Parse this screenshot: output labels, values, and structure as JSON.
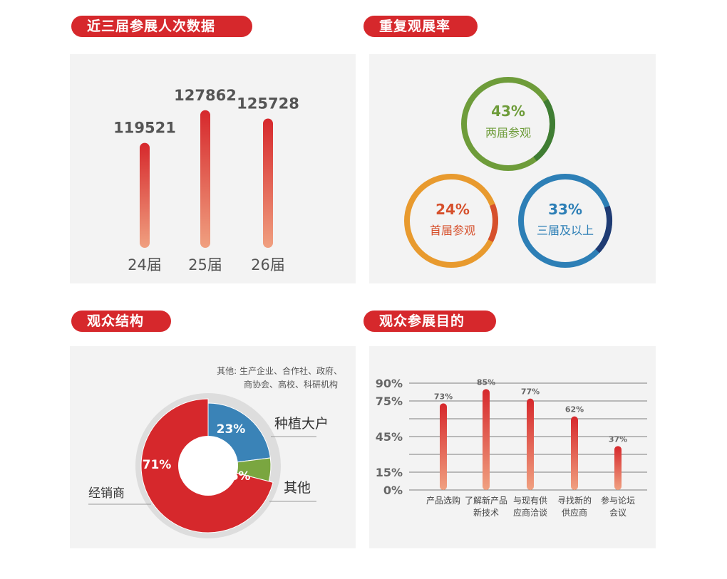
{
  "sections": {
    "s1": "近三届参展人次数据",
    "s2": "重复观展率",
    "s3": "观众结构",
    "s4": "观众参展目的"
  },
  "colors": {
    "accent_red": "#d6282c",
    "panel_bg": "#f3f3f3",
    "green": "#6e9c3a",
    "orange": "#e89a2e",
    "blue": "#2d7fb6",
    "navy": "#1f3b73"
  },
  "chart_data": [
    {
      "id": "attendance",
      "type": "bar",
      "categories": [
        "24届",
        "25届",
        "26届"
      ],
      "values": [
        119521,
        127862,
        125728
      ],
      "ylim": [
        0,
        130000
      ]
    },
    {
      "id": "repeat",
      "type": "pie",
      "circles": [
        {
          "percent": "43%",
          "value": 43,
          "label": "两届参观",
          "color": "#6e9c3a"
        },
        {
          "percent": "24%",
          "value": 24,
          "label": "首届参观",
          "color": "#e89a2e"
        },
        {
          "percent": "33%",
          "value": 33,
          "label": "三届及以上",
          "color": "#2d7fb6"
        }
      ]
    },
    {
      "id": "structure",
      "type": "pie",
      "note_line1": "其他: 生产企业、合作社、政府、",
      "note_line2": "商协会、高校、科研机构",
      "slices": [
        {
          "name": "经销商",
          "value": 71,
          "label": "71%",
          "color": "#d6282c"
        },
        {
          "name": "种植大户",
          "value": 23,
          "label": "23%",
          "color": "#3a83b7"
        },
        {
          "name": "其他",
          "value": 6,
          "label": "6%",
          "color": "#7aa640"
        }
      ]
    },
    {
      "id": "purpose",
      "type": "bar",
      "yticks": [
        "90%",
        "75%",
        "45%",
        "15%",
        "0%"
      ],
      "ytick_values": [
        90,
        75,
        45,
        15,
        0
      ],
      "ylim": [
        0,
        90
      ],
      "categories": [
        {
          "line1": "产品选购",
          "line2": ""
        },
        {
          "line1": "了解新产品",
          "line2": "新技术"
        },
        {
          "line1": "与现有供",
          "line2": "应商洽谈"
        },
        {
          "line1": "寻找新的",
          "line2": "供应商"
        },
        {
          "line1": "参与论坛",
          "line2": "会议"
        }
      ],
      "values": [
        73,
        85,
        77,
        62,
        37
      ],
      "labels": [
        "73%",
        "85%",
        "77%",
        "62%",
        "37%"
      ]
    }
  ]
}
